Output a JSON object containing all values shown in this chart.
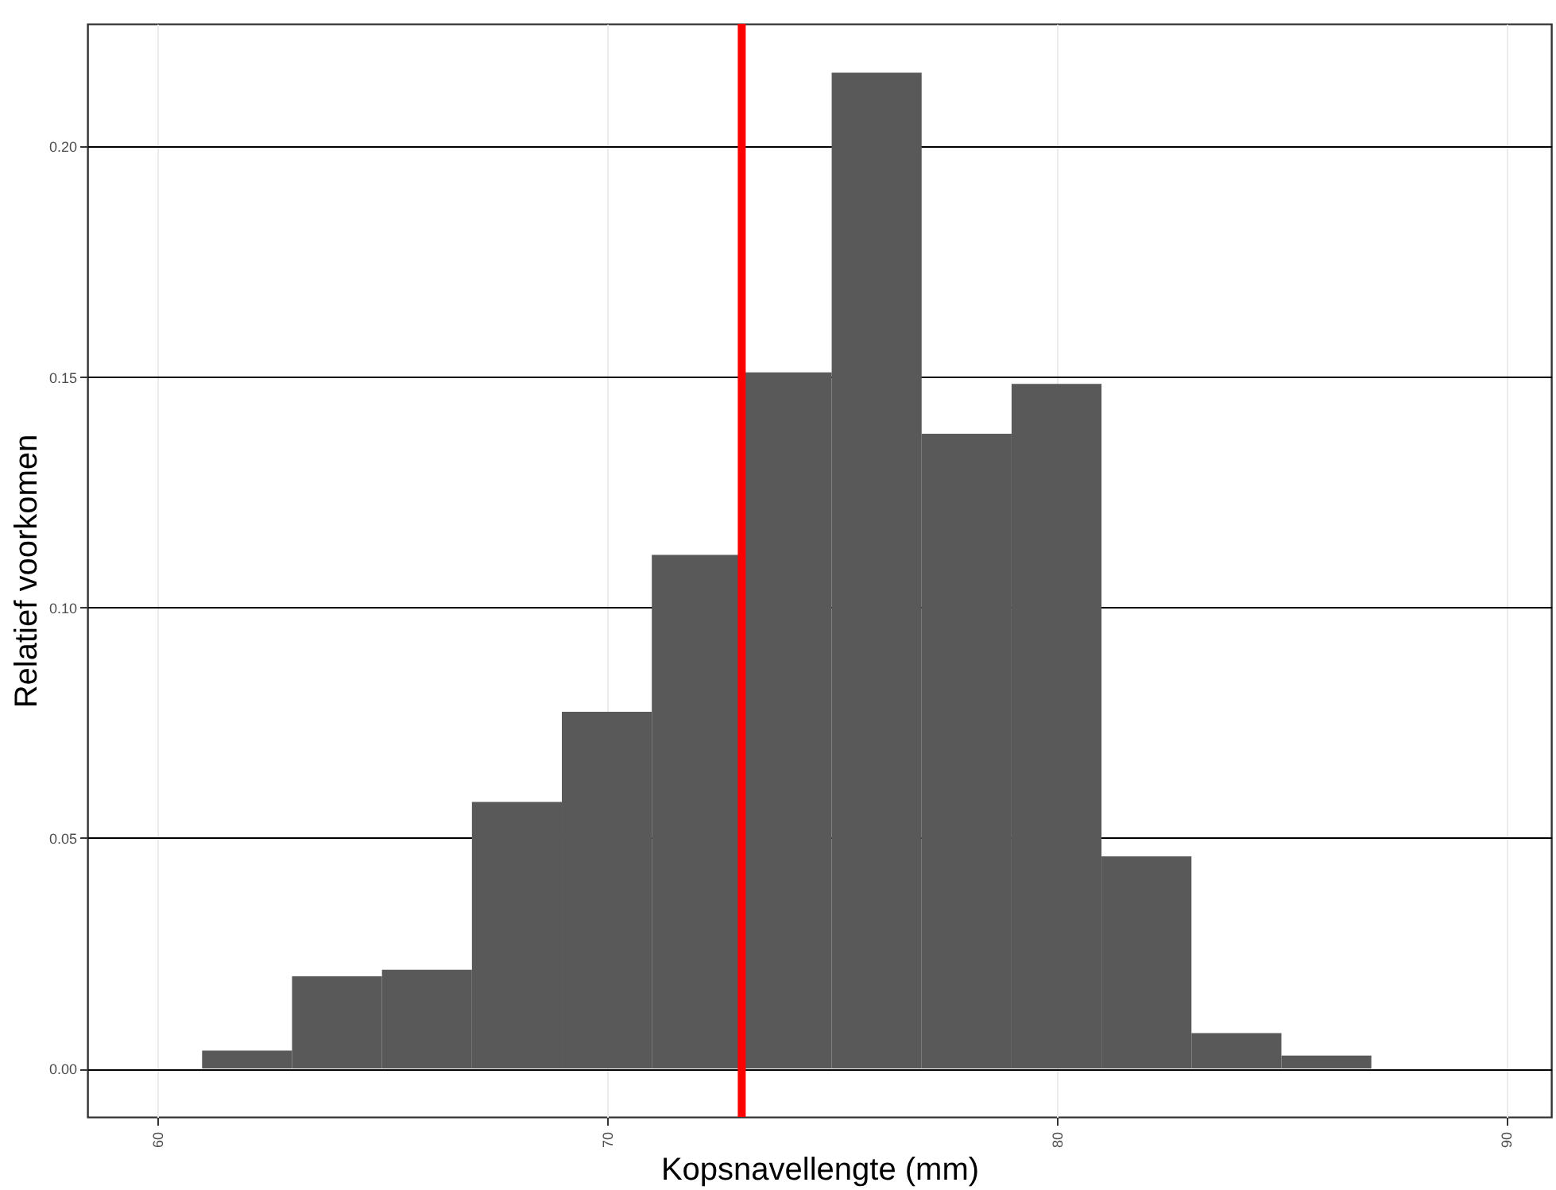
{
  "chart_data": {
    "type": "histogram",
    "xlabel": "Kopsnavellengte (mm)",
    "ylabel": "Relatief voorkomen",
    "bins": [
      61,
      63,
      65,
      67,
      69,
      71,
      73,
      75,
      77,
      79,
      81,
      83,
      85,
      87
    ],
    "values": [
      0.0039,
      0.02,
      0.0214,
      0.0578,
      0.0774,
      0.1114,
      0.151,
      0.216,
      0.1377,
      0.1485,
      0.046,
      0.0077,
      0.0028
    ],
    "color": "#595959",
    "xlim": [
      58.45,
      91.0
    ],
    "xticks": [
      60,
      70,
      80,
      90
    ],
    "ylim": [
      -0.0105,
      0.2266
    ],
    "yticks": [
      {
        "value": 0,
        "label": "0.00"
      },
      {
        "value": 0.05,
        "label": "0.05"
      },
      {
        "value": 0.1,
        "label": "0.10"
      },
      {
        "value": 0.15,
        "label": "0.15"
      },
      {
        "value": 0.2,
        "label": "0.20"
      }
    ],
    "ref_lines": [
      {
        "axis": "x",
        "value": 73,
        "color": "#ff0000"
      }
    ],
    "grid": true
  }
}
